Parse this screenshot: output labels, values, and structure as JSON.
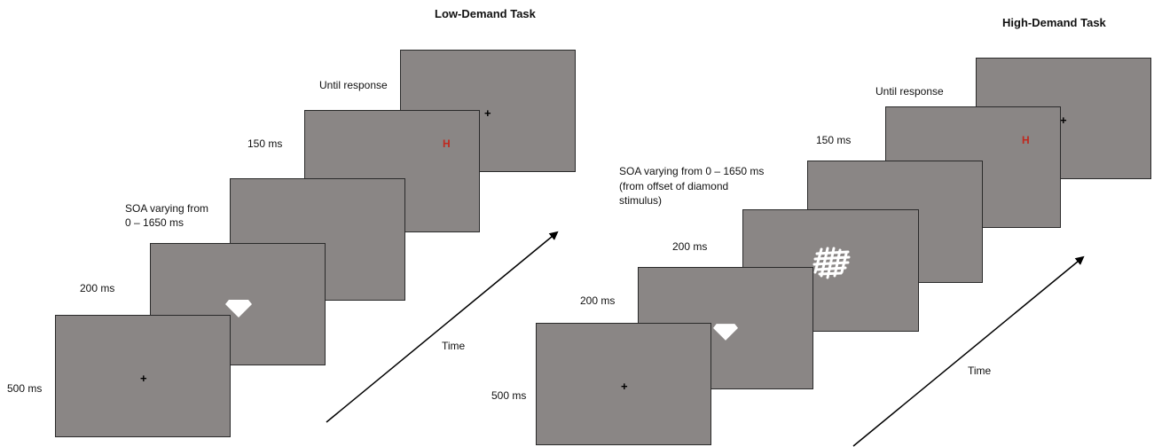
{
  "low_demand": {
    "title": "Low-Demand Task",
    "labels": {
      "until_response": "Until response",
      "ms150": "150 ms",
      "soa_line1": "SOA varying  from",
      "soa_line2": "0 – 1650 ms",
      "ms200": "200 ms",
      "ms500": "500 ms"
    },
    "fixation": "+",
    "target_letter": "H",
    "time_label": "Time"
  },
  "high_demand": {
    "title": "High-Demand Task",
    "labels": {
      "until_response": "Until response",
      "ms150": "150 ms",
      "soa_line1": "SOA varying  from 0 – 1650 ms",
      "soa_line2": "(from offset of diamond",
      "soa_line3": "stimulus)",
      "ms200_mask": "200 ms",
      "ms200": "200 ms",
      "ms500": "500 ms"
    },
    "fixation": "+",
    "target_letter": "H",
    "time_label": "Time"
  },
  "colors": {
    "screen_fill": "#8a8685",
    "screen_border": "#2a2a2a",
    "target_letter": "#c0281e",
    "stimulus": "#ffffff"
  }
}
